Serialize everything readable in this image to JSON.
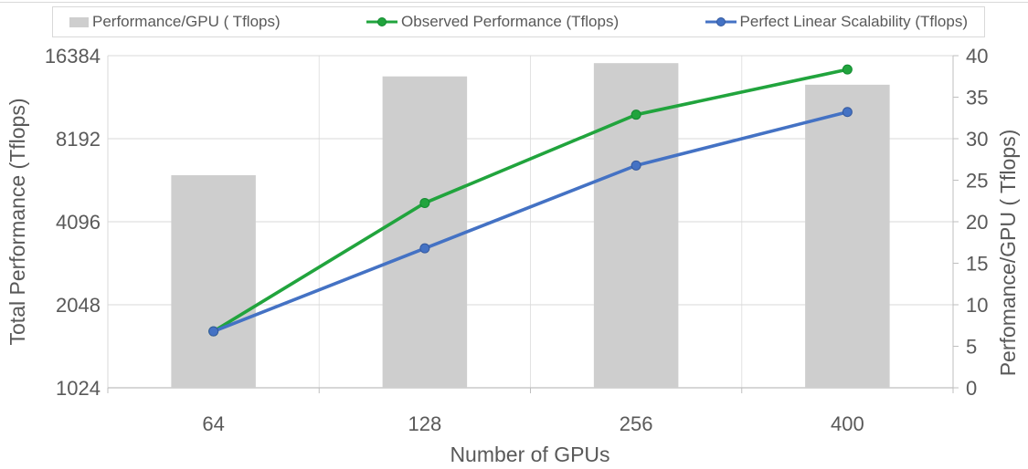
{
  "chart_data": {
    "type": "combo",
    "categories": [
      "64",
      "128",
      "256",
      "400"
    ],
    "xlabel": "Number of GPUs",
    "left_axis": {
      "label": "Total Performance (Tflops)",
      "scale": "log2",
      "min": 1024,
      "max": 16384,
      "ticks": [
        16384,
        8192,
        4096,
        2048,
        1024
      ]
    },
    "right_axis": {
      "label": "Perfomance/GPU ( Tflops)",
      "min": 0,
      "max": 40,
      "labeled_ticks": [
        40,
        35,
        30,
        25,
        20,
        15,
        10,
        5,
        0
      ],
      "minor_tick_step": 5,
      "gridline_step": 10
    },
    "series": [
      {
        "name": "Performance/GPU ( Tflops)",
        "slug": "performance-per-gpu",
        "type": "bar",
        "axis": "right",
        "color": "#cecece",
        "values": [
          25.6,
          37.5,
          39.1,
          36.5
        ]
      },
      {
        "name": "Observed Performance (Tflops)",
        "slug": "observed-performance",
        "type": "line",
        "axis": "left",
        "color": "#21a43d",
        "marker_stroke": "#128a30",
        "values": [
          1640,
          4790,
          10010,
          14600
        ]
      },
      {
        "name": "Perfect Linear Scalability (Tflops)",
        "slug": "perfect-linear-scalability",
        "type": "line",
        "axis": "left",
        "color": "#4472c4",
        "marker_stroke": "#34599e",
        "values": [
          1640,
          3280,
          6550,
          10240
        ]
      }
    ],
    "legend_position": "top",
    "grid": true
  },
  "styles": {
    "background": "#ffffff",
    "grid_color": "#d9d9d9",
    "category_boundary_color": "#e2e2e2",
    "axis_line_color": "#bfbfbf",
    "text_color": "#595959",
    "legend_border_color": "#d9d9d9"
  }
}
